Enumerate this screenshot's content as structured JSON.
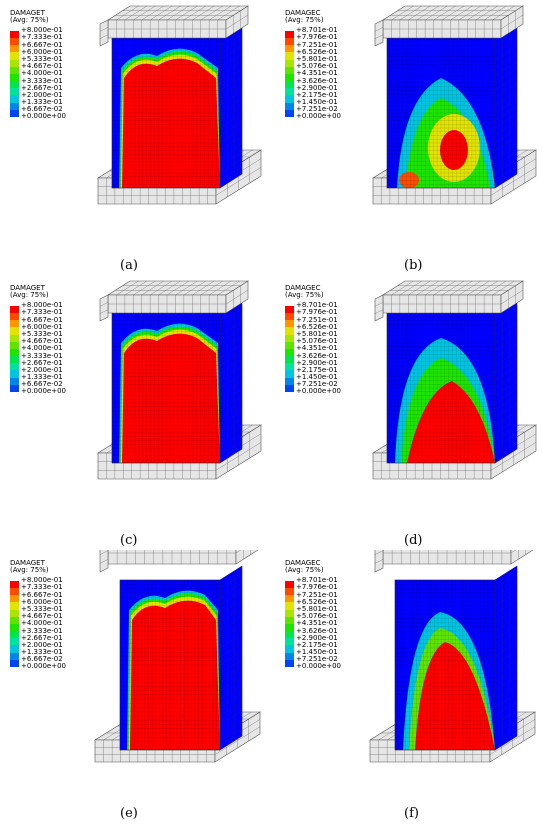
{
  "panels": [
    {
      "legend_title": "DAMAGET",
      "legend_sub": "(Avg: 75%)",
      "legend_values": [
        "+8.000e-01",
        "+7.333e-01",
        "+6.667e-01",
        "+6.000e-01",
        "+5.333e-01",
        "+4.667e-01",
        "+4.000e-01",
        "+3.333e-01",
        "+2.667e-01",
        "+2.000e-01",
        "+1.333e-01",
        "+6.667e-02",
        "+0.000e+00"
      ],
      "caption": "(a)"
    },
    {
      "legend_title": "DAMAGEC",
      "legend_sub": "(Avg: 75%)",
      "legend_values": [
        "+8.701e-01",
        "+7.976e-01",
        "+7.251e-01",
        "+6.526e-01",
        "+5.801e-01",
        "+5.076e-01",
        "+4.351e-01",
        "+3.626e-01",
        "+2.900e-01",
        "+2.175e-01",
        "+1.450e-01",
        "+7.251e-02",
        "+0.000e+00"
      ],
      "caption": "(b)"
    },
    {
      "legend_title": "DAMAGET",
      "legend_sub": "(Avg: 75%)",
      "legend_values": [
        "+8.000e-01",
        "+7.333e-01",
        "+6.667e-01",
        "+6.000e-01",
        "+5.333e-01",
        "+4.667e-01",
        "+4.000e-01",
        "+3.333e-01",
        "+2.667e-01",
        "+2.000e-01",
        "+1.333e-01",
        "+6.667e-02",
        "+0.000e+00"
      ],
      "caption": "(c)"
    },
    {
      "legend_title": "DAMAGEC",
      "legend_sub": "(Avg: 75%)",
      "legend_values": [
        "+8.701e-01",
        "+7.976e-01",
        "+7.251e-01",
        "+6.526e-01",
        "+5.801e-01",
        "+5.076e-01",
        "+4.351e-01",
        "+3.626e-01",
        "+2.900e-01",
        "+2.175e-01",
        "+1.450e-01",
        "+7.251e-02",
        "+0.000e+00"
      ],
      "caption": "(d)"
    },
    {
      "legend_title": "DAMAGET",
      "legend_sub": "(Avg: 75%)",
      "legend_values": [
        "+8.000e-01",
        "+7.333e-01",
        "+6.667e-01",
        "+6.000e-01",
        "+5.333e-01",
        "+4.667e-01",
        "+4.000e-01",
        "+3.333e-01",
        "+2.667e-01",
        "+2.000e-01",
        "+1.333e-01",
        "+6.667e-02",
        "+0.000e+00"
      ],
      "caption": "(e)"
    },
    {
      "legend_title": "DAMAGEC",
      "legend_sub": "(Avg: 75%)",
      "legend_values": [
        "+8.701e-01",
        "+7.976e-01",
        "+7.251e-01",
        "+6.526e-01",
        "+5.801e-01",
        "+5.076e-01",
        "+4.351e-01",
        "+3.626e-01",
        "+2.900e-01",
        "+2.175e-01",
        "+1.450e-01",
        "+7.251e-02",
        "+0.000e+00"
      ],
      "caption": "(f)"
    }
  ],
  "colors": {
    "scale": [
      "#ff0000",
      "#ff4a00",
      "#ff9600",
      "#e1e300",
      "#a8e500",
      "#5ee400",
      "#1de500",
      "#00e44d",
      "#00e39b",
      "#00c4e0",
      "#0086e9",
      "#0046ee",
      "#0000ff"
    ],
    "mesh_gray": "#e6e6e6",
    "mesh_line": "#555555"
  }
}
